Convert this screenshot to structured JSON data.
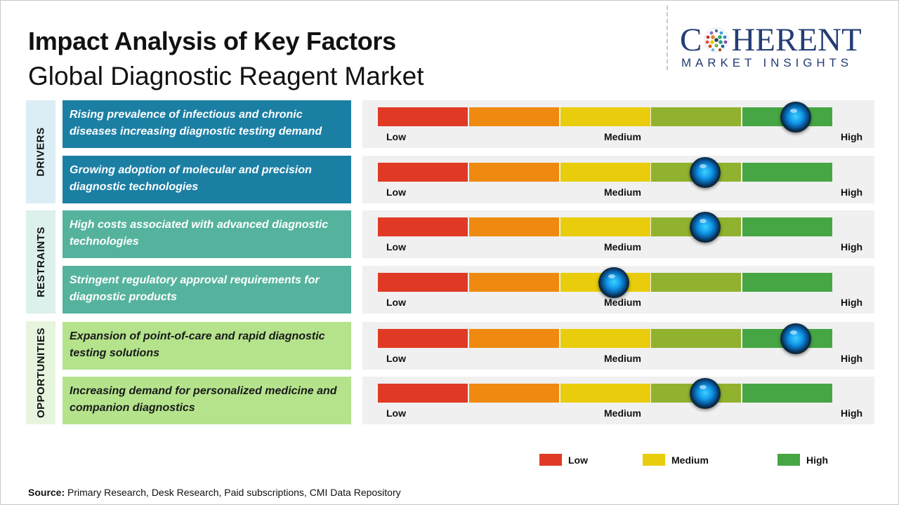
{
  "header": {
    "title": "Impact Analysis of Key Factors",
    "subtitle": "Global Diagnostic Reagent Market"
  },
  "logo": {
    "top_left": "C",
    "top_right": "HERENT",
    "bottom": "MARKET INSIGHTS",
    "icon": "dotted-globe-icon"
  },
  "colors": {
    "low": "#e03a25",
    "low_medium": "#ef8a10",
    "medium": "#e9cd0c",
    "medium_high": "#91b22e",
    "high": "#47a644",
    "drivers": "#1b7fa4",
    "restraints": "#55b39d",
    "opportunities": "#b4e38c",
    "brand": "#243d74"
  },
  "scale_labels": {
    "low": "Low",
    "medium": "Medium",
    "high": "High"
  },
  "legend": [
    {
      "label": "Low",
      "color": "#e03a25"
    },
    {
      "label": "Medium",
      "color": "#e9cd0c"
    },
    {
      "label": "High",
      "color": "#47a644"
    }
  ],
  "chart_data": {
    "type": "table",
    "scale": [
      "Low",
      "Medium",
      "High"
    ],
    "groups": [
      {
        "name": "DRIVERS",
        "factors": [
          {
            "text": "Rising prevalence of infectious and chronic diseases increasing diagnostic testing demand",
            "impact": 0.92
          },
          {
            "text": "Growing adoption of molecular and precision diagnostic technologies",
            "impact": 0.72
          }
        ]
      },
      {
        "name": "RESTRAINTS",
        "factors": [
          {
            "text": "High costs associated with advanced diagnostic technologies",
            "impact": 0.72
          },
          {
            "text": "Stringent regulatory approval requirements for diagnostic products",
            "impact": 0.52
          }
        ]
      },
      {
        "name": "OPPORTUNITIES",
        "factors": [
          {
            "text": "Expansion of point-of-care and rapid diagnostic testing solutions",
            "impact": 0.92
          },
          {
            "text": "Increasing demand for personalized medicine and companion diagnostics",
            "impact": 0.72
          }
        ]
      }
    ]
  },
  "footer": {
    "source_label": "Source:",
    "source_text": "Primary Research, Desk Research, Paid subscriptions, CMI Data Repository"
  }
}
